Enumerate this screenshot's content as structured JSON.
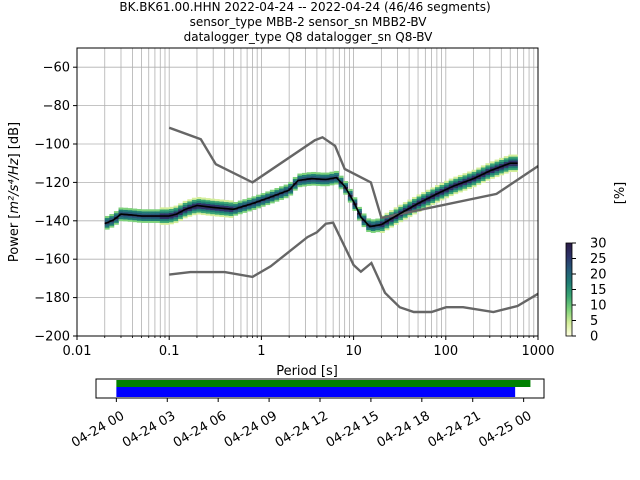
{
  "title": {
    "line1": "BK.BK61.00.HHN   2022-04-24 -- 2022-04-24  (46/46 segments)",
    "line2": "sensor_type MBB-2 sensor_sn MBB2-BV",
    "line3": "datalogger_type Q8 datalogger_sn Q8-BV"
  },
  "chart_data": {
    "type": "heatmap",
    "xscale": "log",
    "xlim": [
      0.01,
      1000
    ],
    "ylim": [
      -200,
      -50
    ],
    "xlabel": "Period [s]",
    "ylabel_prefix": "Power [",
    "ylabel_suffix": "] [dB]",
    "ylabel_unit": "m²/s⁴/Hz",
    "xticks": [
      {
        "value": 0.01,
        "label": "0.01"
      },
      {
        "value": 0.1,
        "label": "0.1"
      },
      {
        "value": 1,
        "label": "1"
      },
      {
        "value": 10,
        "label": "10"
      },
      {
        "value": 100,
        "label": "100"
      },
      {
        "value": 1000,
        "label": "1000"
      }
    ],
    "yticks": [
      {
        "value": -60,
        "label": "−60"
      },
      {
        "value": -80,
        "label": "−80"
      },
      {
        "value": -100,
        "label": "−100"
      },
      {
        "value": -120,
        "label": "−120"
      },
      {
        "value": -140,
        "label": "−140"
      },
      {
        "value": -160,
        "label": "−160"
      },
      {
        "value": -180,
        "label": "−180"
      },
      {
        "value": -200,
        "label": "−200"
      }
    ],
    "grid": true,
    "mode_curve": [
      [
        0.02,
        -141.5
      ],
      [
        0.025,
        -139.5
      ],
      [
        0.03,
        -136.5
      ],
      [
        0.04,
        -137
      ],
      [
        0.05,
        -137.5
      ],
      [
        0.07,
        -137.5
      ],
      [
        0.1,
        -137.5
      ],
      [
        0.12,
        -136.5
      ],
      [
        0.15,
        -134
      ],
      [
        0.2,
        -132
      ],
      [
        0.3,
        -133
      ],
      [
        0.5,
        -134
      ],
      [
        0.8,
        -131
      ],
      [
        1.2,
        -128
      ],
      [
        2,
        -124
      ],
      [
        2.5,
        -119
      ],
      [
        3.5,
        -118
      ],
      [
        5,
        -118.5
      ],
      [
        6.5,
        -117.5
      ],
      [
        8,
        -122
      ],
      [
        10,
        -130
      ],
      [
        12,
        -138
      ],
      [
        15,
        -143
      ],
      [
        20,
        -142
      ],
      [
        30,
        -137
      ],
      [
        50,
        -131
      ],
      [
        80,
        -126
      ],
      [
        120,
        -122
      ],
      [
        200,
        -118
      ],
      [
        300,
        -114
      ],
      [
        500,
        -110
      ],
      [
        600,
        -110
      ]
    ],
    "nhnm": [
      [
        0.1,
        -91.5
      ],
      [
        0.22,
        -97.5
      ],
      [
        0.32,
        -110.5
      ],
      [
        0.8,
        -120
      ],
      [
        3.8,
        -98
      ],
      [
        4.6,
        -96.5
      ],
      [
        6.3,
        -101
      ],
      [
        8,
        -113
      ],
      [
        15.4,
        -120
      ],
      [
        20,
        -138.5
      ],
      [
        354.8,
        -126
      ],
      [
        1000,
        -111.5
      ]
    ],
    "nlnm": [
      [
        0.1,
        -168
      ],
      [
        0.17,
        -166.7
      ],
      [
        0.4,
        -166.7
      ],
      [
        0.8,
        -169.2
      ],
      [
        1.26,
        -163.7
      ],
      [
        3.16,
        -148.5
      ],
      [
        4,
        -146
      ],
      [
        5,
        -141.5
      ],
      [
        6,
        -141
      ],
      [
        10,
        -163
      ],
      [
        12,
        -166.5
      ],
      [
        15.6,
        -162
      ],
      [
        21.9,
        -177.5
      ],
      [
        31.6,
        -185
      ],
      [
        45,
        -187.5
      ],
      [
        70,
        -187.5
      ],
      [
        101,
        -185
      ],
      [
        154,
        -185
      ],
      [
        328,
        -187.5
      ],
      [
        600,
        -184.4
      ],
      [
        1000,
        -178
      ]
    ],
    "colorbar": {
      "label": "[%]",
      "min": 0,
      "max": 30,
      "ticks": [
        {
          "value": 0,
          "label": "0"
        },
        {
          "value": 5,
          "label": "5"
        },
        {
          "value": 10,
          "label": "10"
        },
        {
          "value": 15,
          "label": "15"
        },
        {
          "value": 20,
          "label": "20"
        },
        {
          "value": 25,
          "label": "25"
        },
        {
          "value": 30,
          "label": "30"
        }
      ],
      "colors": [
        "#ffffe0",
        "#d4ee9a",
        "#7dd17a",
        "#3aa573",
        "#1f7d74",
        "#265a78",
        "#2d3268",
        "#2b1c46"
      ]
    },
    "timeline": {
      "start": "2022-04-24 00:00",
      "end": "2022-04-25 00:00",
      "ticks": [
        "04-24 00",
        "04-24 03",
        "04-24 06",
        "04-24 09",
        "04-24 12",
        "04-24 15",
        "04-24 18",
        "04-24 21",
        "04-25 00"
      ],
      "data_coverage": {
        "from_hour": 0,
        "to_hour": 24.4,
        "color": "#008000"
      },
      "psd_coverage": {
        "from_hour": 0,
        "to_hour": 23.5,
        "color": "#0000ff"
      },
      "window_hours": [
        -1.2,
        25.2
      ]
    }
  }
}
